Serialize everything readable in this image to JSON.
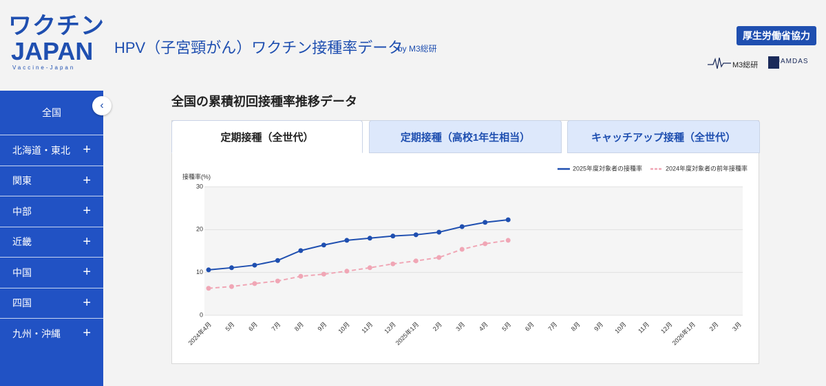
{
  "header": {
    "logo": [
      "ワクチン",
      "JAPAN",
      "Vaccine-Japan"
    ],
    "title": "HPV（子宮頸がん）ワクチン接種率データ",
    "subtitle": "by M3総研",
    "badge": "厚生労働省協力",
    "partners": [
      "M3総研",
      "JAMDAS"
    ]
  },
  "sidebar": {
    "items": [
      "全国",
      "北海道・東北",
      "関東",
      "中部",
      "近畿",
      "中国",
      "四国",
      "九州・沖縄"
    ]
  },
  "section_title": "全国の累積初回接種率推移データ",
  "tabs": [
    "定期接種（全世代）",
    "定期接種（高校1年生相当）",
    "キャッチアップ接種（全世代）"
  ],
  "chart_data": {
    "type": "line",
    "ylabel": "接種率(%)",
    "categories": [
      "2024年4月",
      "5月",
      "6月",
      "7月",
      "8月",
      "9月",
      "10月",
      "11月",
      "12月",
      "2025年1月",
      "2月",
      "3月",
      "4月",
      "5月",
      "6月",
      "7月",
      "8月",
      "9月",
      "10月",
      "11月",
      "12月",
      "2026年1月",
      "2月",
      "3月"
    ],
    "series": [
      {
        "name": "2025年度対象者の接種率",
        "color": "#1f4fb0",
        "line_style": "solid",
        "values": [
          10.6,
          11.1,
          11.7,
          12.8,
          15.1,
          16.4,
          17.5,
          18.0,
          18.5,
          18.8,
          19.4,
          20.7,
          21.7,
          22.3,
          null,
          null,
          null,
          null,
          null,
          null,
          null,
          null,
          null,
          null
        ]
      },
      {
        "name": "2024年度対象者の前年接種率",
        "color": "#f0a6b5",
        "line_style": "dashed",
        "values": [
          6.3,
          6.7,
          7.4,
          8.0,
          9.1,
          9.6,
          10.3,
          11.1,
          12.0,
          12.7,
          13.5,
          15.4,
          16.7,
          17.5,
          null,
          null,
          null,
          null,
          null,
          null,
          null,
          null,
          null,
          null
        ]
      }
    ],
    "ylim": [
      0,
      30
    ],
    "yticks": [
      0,
      10,
      20,
      30
    ],
    "grid": true,
    "legend": "top-right"
  }
}
